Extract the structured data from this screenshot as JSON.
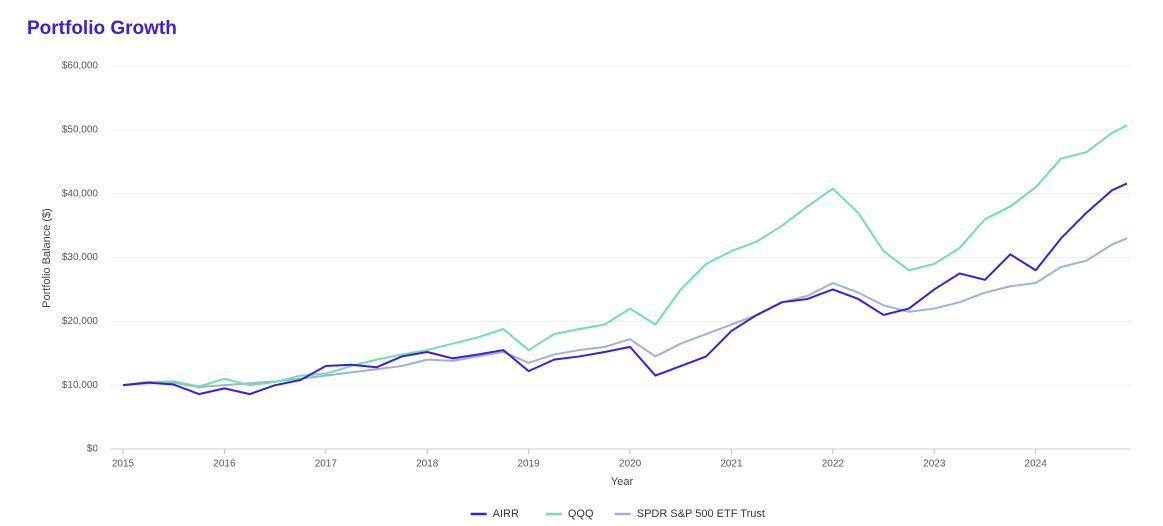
{
  "chart_data": {
    "type": "line",
    "title": "Portfolio Growth",
    "x_label": "Year",
    "y_label": "Portfolio Balance ($)",
    "x": [
      2015,
      2015.25,
      2015.5,
      2015.75,
      2016,
      2016.25,
      2016.5,
      2016.75,
      2017,
      2017.25,
      2017.5,
      2017.75,
      2018,
      2018.25,
      2018.5,
      2018.75,
      2019,
      2019.25,
      2019.5,
      2019.75,
      2020,
      2020.25,
      2020.5,
      2020.75,
      2021,
      2021.25,
      2021.5,
      2021.75,
      2022,
      2022.25,
      2022.5,
      2022.75,
      2023,
      2023.25,
      2023.5,
      2023.75,
      2024,
      2024.25,
      2024.5,
      2024.75,
      2024.9
    ],
    "series": [
      {
        "name": "AIRR",
        "color": "#3a1fd6",
        "values": [
          10000,
          10400,
          10100,
          8600,
          9500,
          8600,
          10000,
          10800,
          13000,
          13200,
          12800,
          14500,
          15200,
          14200,
          14800,
          15500,
          12200,
          14000,
          14500,
          15200,
          16000,
          11500,
          13000,
          14500,
          18500,
          21000,
          23000,
          23500,
          25000,
          23500,
          21000,
          22000,
          25000,
          27500,
          26500,
          30500,
          28000,
          33000,
          37000,
          40500,
          41600
        ]
      },
      {
        "name": "QQQ",
        "color": "#6ee0ad",
        "values": [
          10000,
          10500,
          10600,
          9800,
          11000,
          10000,
          10500,
          11500,
          11800,
          13000,
          14000,
          14800,
          15500,
          16500,
          17500,
          18800,
          15500,
          18000,
          18800,
          19500,
          22000,
          19500,
          25000,
          29000,
          31000,
          32500,
          35000,
          38000,
          40800,
          37000,
          31000,
          28000,
          29000,
          31500,
          36000,
          38000,
          41000,
          45500,
          46500,
          49500,
          50700
        ]
      },
      {
        "name": "SPDR S&P 500 ETF Trust",
        "color": "#9ab4d8",
        "values": [
          10000,
          10300,
          10400,
          9700,
          10000,
          10300,
          10600,
          11000,
          11500,
          12000,
          12500,
          13000,
          14000,
          13800,
          14500,
          15200,
          13500,
          14800,
          15500,
          16000,
          17200,
          14500,
          16500,
          18000,
          19500,
          21000,
          23000,
          24000,
          26000,
          24500,
          22500,
          21500,
          22000,
          23000,
          24500,
          25500,
          26000,
          28500,
          29500,
          32000,
          33000
        ]
      }
    ],
    "xlim": [
      2015,
      2024.94
    ],
    "xticks": [
      2015,
      2016,
      2017,
      2018,
      2019,
      2020,
      2021,
      2022,
      2023,
      2024
    ],
    "ylim": [
      0,
      60000
    ],
    "yticks": [
      {
        "value": 0,
        "label": "$0"
      },
      {
        "value": 10000,
        "label": "$10,000"
      },
      {
        "value": 20000,
        "label": "$20,000"
      },
      {
        "value": 30000,
        "label": "$30,000"
      },
      {
        "value": 40000,
        "label": "$40,000"
      },
      {
        "value": 50000,
        "label": "$50,000"
      },
      {
        "value": 60000,
        "label": "$60,000"
      }
    ],
    "grid": true,
    "legend": "bottom"
  }
}
